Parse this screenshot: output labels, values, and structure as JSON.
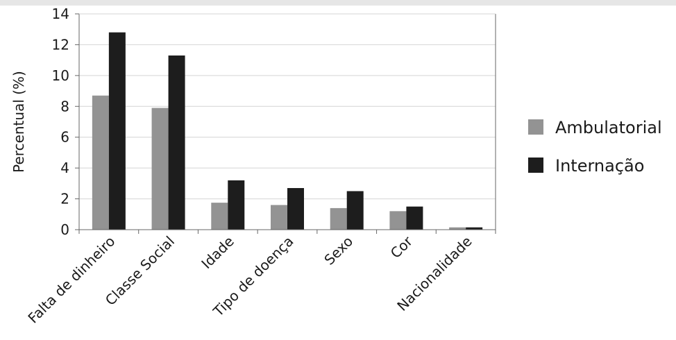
{
  "chart_data": {
    "type": "bar",
    "categories": [
      "Falta de dinheiro",
      "Classe Social",
      "Idade",
      "Tipo de doença",
      "Sexo",
      "Cor",
      "Nacionalidade"
    ],
    "series": [
      {
        "name": "Ambulatorial",
        "color": "#939393",
        "values": [
          8.7,
          7.9,
          1.75,
          1.6,
          1.4,
          1.2,
          0.15
        ]
      },
      {
        "name": "Internação",
        "color": "#1d1d1d",
        "values": [
          12.8,
          11.3,
          3.2,
          2.7,
          2.5,
          1.5,
          0.15
        ]
      }
    ],
    "ylabel": "Percentual (%)",
    "xlabel": "",
    "title": "",
    "ylim": [
      0,
      14
    ],
    "yticks": [
      0,
      2,
      4,
      6,
      8,
      10,
      12,
      14
    ],
    "grid": true,
    "legend_position": "right"
  }
}
